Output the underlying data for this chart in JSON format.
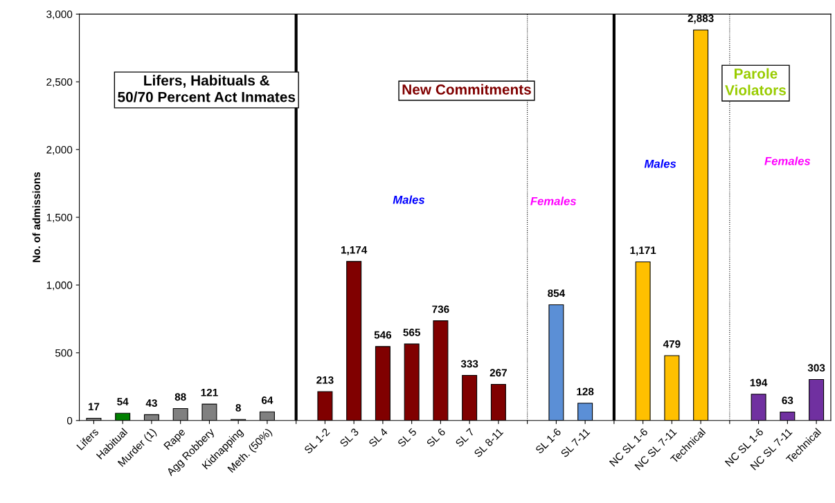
{
  "chart_data": {
    "type": "bar",
    "ylabel": "No. of admissions",
    "categories": [
      "Lifers",
      "Habitual",
      "Murder (1)",
      "Rape",
      "Agg Robbery",
      "Kidnapping",
      "Meth. (50%)",
      null,
      "SL 1-2",
      "SL 3",
      "SL 4",
      "SL 5",
      "SL 6",
      "SL 7",
      "SL 8-11",
      null,
      "SL 1-6",
      "SL 7-11",
      null,
      "NC SL 1-6",
      "NC SL 7-11",
      "Technical",
      null,
      "NC SL 1-6",
      "NC SL 7-11",
      "Technical"
    ],
    "values": [
      17,
      54,
      43,
      88,
      121,
      8,
      64,
      null,
      213,
      1174,
      546,
      565,
      736,
      333,
      267,
      null,
      854,
      128,
      null,
      1171,
      479,
      2883,
      null,
      194,
      63,
      303
    ],
    "value_labels": [
      "17",
      "54",
      "43",
      "88",
      "121",
      "8",
      "64",
      null,
      "213",
      "1,174",
      "546",
      "565",
      "736",
      "333",
      "267",
      null,
      "854",
      "128",
      null,
      "1,171",
      "479",
      "2,883",
      null,
      "194",
      "63",
      "303"
    ],
    "colors": [
      "#808080",
      "#008000",
      "#808080",
      "#808080",
      "#808080",
      "#808080",
      "#808080",
      null,
      "#800000",
      "#800000",
      "#800000",
      "#800000",
      "#800000",
      "#800000",
      "#800000",
      null,
      "#5b8fd6",
      "#5b8fd6",
      null,
      "#ffc000",
      "#ffc000",
      "#ffc000",
      null,
      "#7030a0",
      "#7030a0",
      "#7030a0"
    ],
    "ylim": [
      0,
      3000
    ],
    "yticks": [
      0,
      500,
      {
        "value": 1000,
        "label": "1,000"
      },
      {
        "value": 1500,
        "label": "1,500"
      },
      {
        "value": 2000,
        "label": "2,000"
      },
      {
        "value": 2500,
        "label": "2,500"
      },
      {
        "value": 3000,
        "label": "3,000"
      }
    ],
    "grid": false,
    "legend": false,
    "annotations": [
      "Lifers, Habituals &\n50/70 Percent Act Inmates",
      "New Commitments",
      "Parole\nViolators",
      "Males",
      "Females",
      "Males",
      "Females"
    ]
  }
}
